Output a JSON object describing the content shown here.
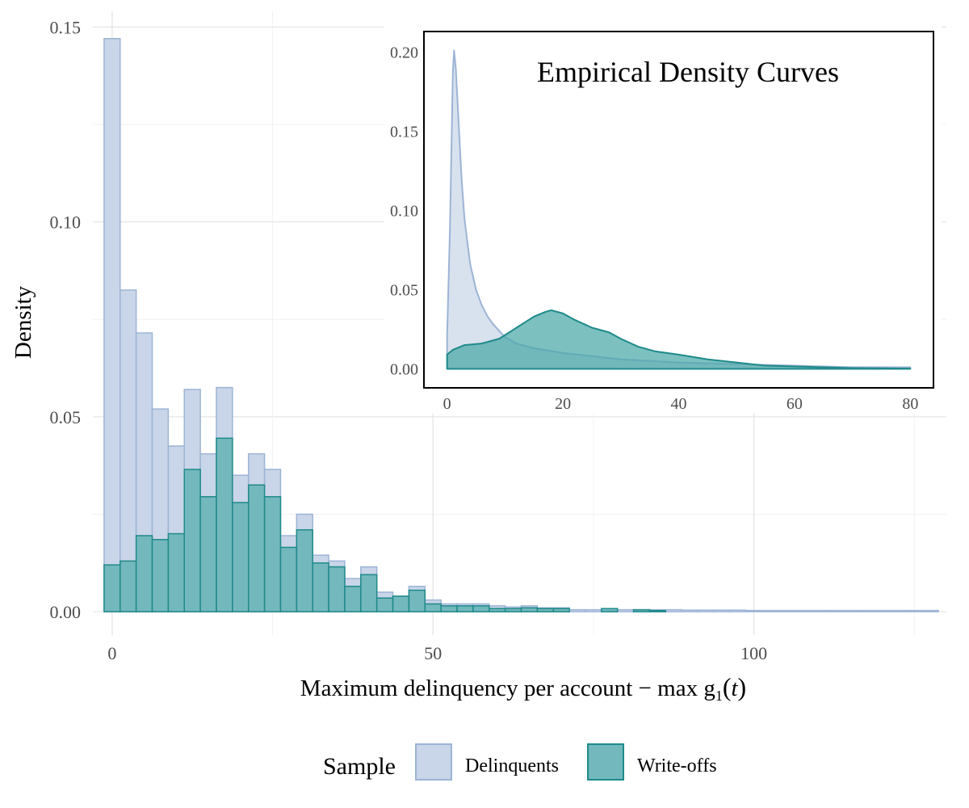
{
  "chart_data": [
    {
      "type": "histogram",
      "xlabel_main": "Maximum delinquency per account −  max g",
      "xlabel_sub": "1",
      "xlabel_paren_open": "(",
      "xlabel_var": "t",
      "xlabel_paren_close": ")",
      "ylabel": "Density",
      "xlim": [
        -3,
        130
      ],
      "ylim": [
        -0.006,
        0.154
      ],
      "x_ticks": [
        0,
        50,
        100
      ],
      "x_tick_labels": [
        "0",
        "50",
        "100"
      ],
      "y_ticks": [
        0,
        0.05,
        0.1,
        0.15
      ],
      "y_tick_labels": [
        "0.00",
        "0.05",
        "0.10",
        "0.15"
      ],
      "bin_start": -1.25,
      "bin_width": 2.5,
      "grid": true,
      "legend": {
        "title": "Sample",
        "position": "bottom",
        "entries": [
          "Delinquents",
          "Write-offs"
        ]
      },
      "series": [
        {
          "name": "Delinquents",
          "fill": "#c9d5e8",
          "stroke": "#9db4d6",
          "values": [
            0.147,
            0.0825,
            0.0715,
            0.052,
            0.0425,
            0.057,
            0.0405,
            0.0575,
            0.035,
            0.0405,
            0.0365,
            0.0195,
            0.025,
            0.0145,
            0.013,
            0.0085,
            0.0115,
            0.005,
            0.004,
            0.0065,
            0.003,
            0.002,
            0.002,
            0.002,
            0.0015,
            0.0012,
            0.0015,
            0.001,
            0.001,
            0.0005,
            0.0005,
            0.0005,
            0.0005,
            0.0005,
            0.0005,
            0.0005,
            0.0004,
            0.0004,
            0.0004,
            0.0004,
            0.0003,
            0.0003,
            0.0003,
            0.0003,
            0.0003,
            0.0003,
            0.0003,
            0.0003,
            0.0003,
            0.0003,
            0.0003,
            0.0003
          ]
        },
        {
          "name": "Write-offs",
          "fill": "#73b8bc",
          "stroke": "#1f8a8a",
          "values": [
            0.012,
            0.013,
            0.0195,
            0.0185,
            0.02,
            0.0365,
            0.0295,
            0.0445,
            0.028,
            0.0325,
            0.0295,
            0.0165,
            0.021,
            0.0125,
            0.0115,
            0.0065,
            0.0095,
            0.0035,
            0.004,
            0.0055,
            0.002,
            0.0015,
            0.0015,
            0.0015,
            0.0008,
            0.0008,
            0.001,
            0.0008,
            0.0008,
            0,
            0,
            0.0008,
            0,
            0.0005,
            0.0003,
            0,
            0,
            0,
            0,
            0,
            0,
            0,
            0,
            0,
            0,
            0,
            0,
            0,
            0,
            0,
            0,
            0
          ]
        }
      ]
    },
    {
      "type": "area",
      "title": "Empirical Density Curves",
      "xlim": [
        -4,
        84
      ],
      "ylim": [
        -0.012,
        0.213
      ],
      "x_ticks": [
        0,
        20,
        40,
        60,
        80
      ],
      "x_tick_labels": [
        "0",
        "20",
        "40",
        "60",
        "80"
      ],
      "y_ticks": [
        0,
        0.05,
        0.1,
        0.15,
        0.2
      ],
      "y_tick_labels": [
        "0.00",
        "0.05",
        "0.10",
        "0.15",
        "0.20"
      ],
      "series": [
        {
          "name": "Delinquents",
          "fill": "#c9d5e8",
          "stroke": "#9db4d6",
          "x": [
            0,
            0.5,
            1,
            1.2,
            1.5,
            2,
            2.5,
            3,
            3.5,
            4,
            5,
            6,
            7,
            8,
            10,
            12,
            15,
            20,
            25,
            30,
            40,
            50,
            60,
            70,
            80
          ],
          "y": [
            0.02,
            0.09,
            0.188,
            0.201,
            0.19,
            0.155,
            0.12,
            0.095,
            0.08,
            0.066,
            0.05,
            0.04,
            0.033,
            0.028,
            0.02,
            0.016,
            0.013,
            0.01,
            0.008,
            0.006,
            0.004,
            0.003,
            0.002,
            0.001,
            0.001
          ]
        },
        {
          "name": "Write-offs",
          "fill": "#4aa8a8",
          "stroke": "#1f8a8a",
          "x": [
            0,
            1,
            3,
            6,
            9,
            12,
            15,
            17,
            18,
            20,
            22,
            25,
            28,
            30,
            33,
            36,
            40,
            45,
            50,
            55,
            60,
            70,
            80
          ],
          "y": [
            0.009,
            0.012,
            0.015,
            0.016,
            0.019,
            0.026,
            0.033,
            0.036,
            0.037,
            0.035,
            0.031,
            0.026,
            0.023,
            0.019,
            0.014,
            0.011,
            0.009,
            0.006,
            0.004,
            0.002,
            0.0015,
            0.0005,
            0.0002
          ]
        }
      ]
    }
  ]
}
